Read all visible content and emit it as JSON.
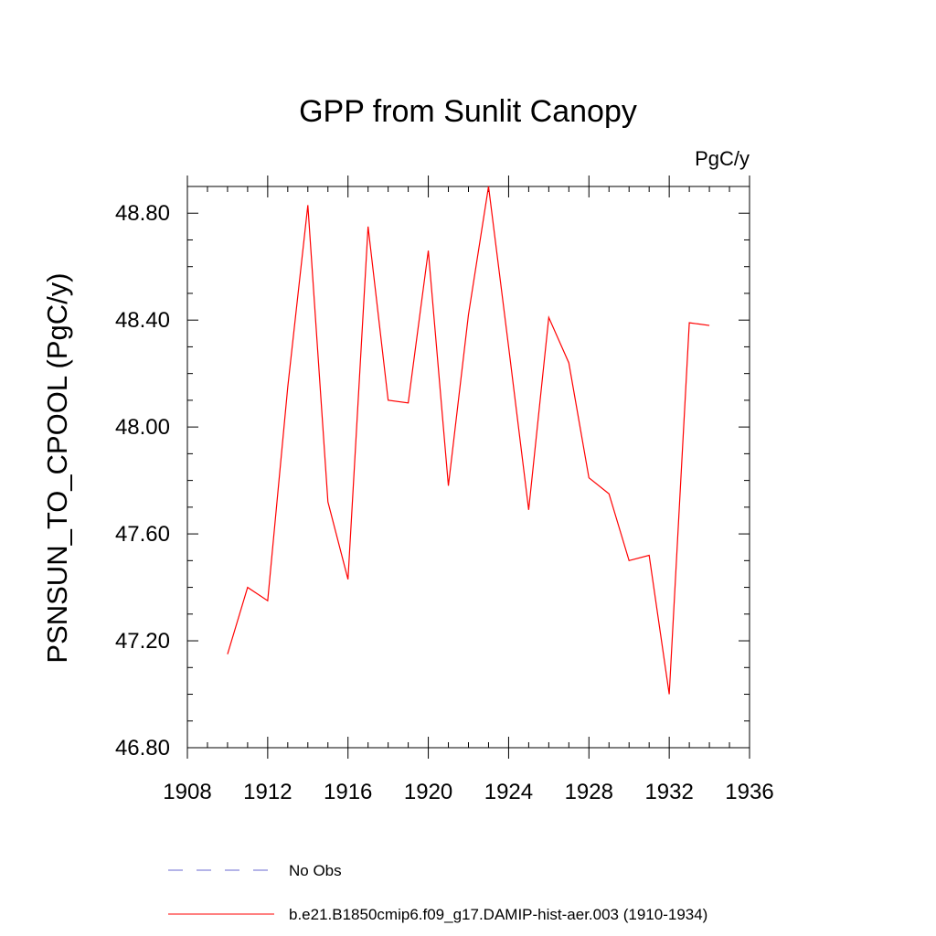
{
  "chart_data": {
    "type": "line",
    "title": "GPP from Sunlit Canopy",
    "units": "PgC/y",
    "xlabel": "",
    "ylabel": "PSNSUN_TO_CPOOL  (PgC/y)",
    "xlim": [
      1908,
      1936
    ],
    "ylim": [
      46.8,
      48.9
    ],
    "xticks": [
      1908,
      1912,
      1916,
      1920,
      1924,
      1928,
      1932,
      1936
    ],
    "xtick_labels": [
      "1908",
      "1912",
      "1916",
      "1920",
      "1924",
      "1928",
      "1932",
      "1936"
    ],
    "yticks": [
      46.8,
      47.2,
      47.6,
      48.0,
      48.4,
      48.8
    ],
    "ytick_labels": [
      "46.80",
      "47.20",
      "47.60",
      "48.00",
      "48.40",
      "48.80"
    ],
    "grid": false,
    "legend_position": "bottom",
    "series": [
      {
        "name": "No Obs",
        "color": "#6a6ad0",
        "style": "dashed",
        "x": [],
        "y": []
      },
      {
        "name": "b.e21.B1850cmip6.f09_g17.DAMIP-hist-aer.003 (1910-1934)",
        "color": "#ff0000",
        "style": "solid",
        "x": [
          1910,
          1911,
          1912,
          1913,
          1914,
          1915,
          1916,
          1917,
          1918,
          1919,
          1920,
          1921,
          1922,
          1923,
          1924,
          1925,
          1926,
          1927,
          1928,
          1929,
          1930,
          1931,
          1932,
          1933,
          1934
        ],
        "y": [
          47.15,
          47.4,
          47.35,
          48.15,
          48.83,
          47.72,
          47.43,
          48.75,
          48.1,
          48.09,
          48.66,
          47.78,
          48.42,
          48.9,
          48.3,
          47.69,
          48.41,
          48.24,
          47.81,
          47.75,
          47.5,
          47.52,
          47.0,
          48.39,
          48.38
        ]
      }
    ]
  }
}
